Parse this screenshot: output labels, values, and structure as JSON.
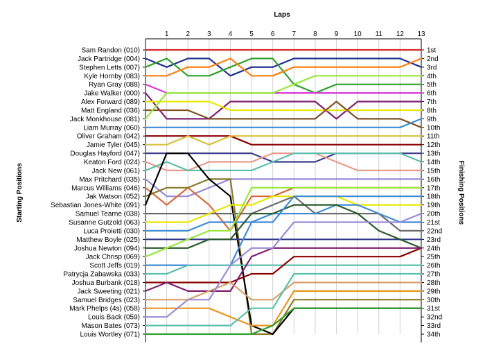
{
  "chart_data": {
    "type": "line",
    "title": "",
    "xlabel": "Laps",
    "ylabel_left": "Starting Positions",
    "ylabel_right": "Finishing Positions",
    "x": [
      0,
      1,
      2,
      3,
      4,
      5,
      6,
      7,
      8,
      9,
      10,
      11,
      12,
      13
    ],
    "xticks": [
      "1",
      "2",
      "3",
      "4",
      "5",
      "6",
      "7",
      "8",
      "9",
      "10",
      "11",
      "12",
      "13"
    ],
    "finishing_positions": [
      "1st",
      "2nd",
      "3rd",
      "4th",
      "5th",
      "6th",
      "7th",
      "8th",
      "9th",
      "10th",
      "11th",
      "12th",
      "13th",
      "14th",
      "15th",
      "16th",
      "17th",
      "18th",
      "19th",
      "20th",
      "21st",
      "22nd",
      "23rd",
      "24th",
      "25th",
      "26th",
      "27th",
      "28th",
      "29th",
      "30th",
      "31st",
      "32nd",
      "33rd",
      "34th"
    ],
    "grid": false,
    "legend": "none",
    "series": [
      {
        "name": "Sam Randon (010)",
        "color": "#d62728",
        "values": [
          1,
          1,
          1,
          1,
          1,
          1,
          1,
          1,
          1,
          1,
          1,
          1,
          1,
          1
        ]
      },
      {
        "name": "Jack Partridge (004)",
        "color": "#1f2f8f",
        "values": [
          2,
          3,
          2,
          2,
          4,
          3,
          3,
          2,
          2,
          2,
          2,
          2,
          2,
          3
        ]
      },
      {
        "name": "Stephen Letts (007)",
        "color": "#2ca02c",
        "values": [
          3,
          2,
          4,
          4,
          3,
          2,
          2,
          5,
          6,
          5,
          5,
          5,
          5,
          5
        ]
      },
      {
        "name": "Kyle Hornby (083)",
        "color": "#ff7f0e",
        "values": [
          4,
          4,
          3,
          3,
          2,
          4,
          4,
          3,
          3,
          3,
          3,
          3,
          3,
          2
        ]
      },
      {
        "name": "Ryan Gray (088)",
        "color": "#d63cd6",
        "values": [
          5,
          6,
          6,
          6,
          6,
          6,
          6,
          6,
          6,
          6,
          6,
          6,
          6,
          6
        ]
      },
      {
        "name": "Jake Walker (000)",
        "color": "#7f1f6f",
        "values": [
          6,
          9,
          9,
          9,
          7,
          7,
          7,
          7,
          7,
          9,
          7,
          7,
          7,
          7
        ]
      },
      {
        "name": "Alex Forward (089)",
        "color": "#e8e800",
        "values": [
          7,
          7,
          7,
          7,
          8,
          8,
          8,
          8,
          8,
          8,
          8,
          8,
          8,
          8
        ]
      },
      {
        "name": "Matt England (036)",
        "color": "#7f4f1f",
        "values": [
          8,
          8,
          8,
          9,
          9,
          9,
          9,
          9,
          9,
          7,
          9,
          9,
          9,
          10
        ]
      },
      {
        "name": "Jack Monkhouse (081)",
        "color": "#97e83c",
        "values": [
          9,
          6,
          6,
          6,
          6,
          6,
          6,
          5,
          4,
          4,
          4,
          4,
          4,
          4
        ]
      },
      {
        "name": "Liam Murray (060)",
        "color": "#3c8cd6",
        "values": [
          10,
          10,
          10,
          10,
          10,
          10,
          10,
          10,
          10,
          10,
          10,
          10,
          10,
          9
        ]
      },
      {
        "name": "Oliver Graham (042)",
        "color": "#8b0000",
        "values": [
          11,
          11,
          11,
          11,
          11,
          12,
          12,
          12,
          12,
          12,
          12,
          12,
          12,
          12
        ]
      },
      {
        "name": "Jamie Tyler (045)",
        "color": "#d6c23c",
        "values": [
          12,
          12,
          11,
          12,
          11,
          11,
          11,
          11,
          11,
          11,
          11,
          11,
          11,
          11
        ]
      },
      {
        "name": "Douglas Hayford (047)",
        "color": "#3c3c8c",
        "values": [
          13,
          13,
          13,
          13,
          13,
          13,
          14,
          14,
          14,
          13,
          13,
          13,
          13,
          13
        ]
      },
      {
        "name": "Keaton Ford (024)",
        "color": "#e89a8a",
        "values": [
          14,
          15,
          15,
          14,
          14,
          14,
          13,
          13,
          13,
          14,
          15,
          15,
          15,
          15
        ]
      },
      {
        "name": "Jack New (061)",
        "color": "#5abfae",
        "values": [
          15,
          14,
          15,
          15,
          15,
          15,
          14,
          13,
          13,
          13,
          13,
          13,
          13,
          14
        ]
      },
      {
        "name": "Max Pritchard (035)",
        "color": "#9a8ad6",
        "values": [
          16,
          18,
          18,
          17,
          16,
          16,
          16,
          16,
          16,
          16,
          16,
          16,
          16,
          16
        ]
      },
      {
        "name": "Marcus Williams (046)",
        "color": "#d6693c",
        "values": [
          17,
          19,
          17,
          19,
          22,
          18,
          18,
          17,
          17,
          17,
          17,
          17,
          17,
          17
        ]
      },
      {
        "name": "Jak Watson (052)",
        "color": "#8a7a2a",
        "values": [
          18,
          17,
          17,
          16,
          16,
          34,
          34,
          30,
          30,
          30,
          30,
          30,
          30,
          30
        ]
      },
      {
        "name": "Sebastian Jones-White (091)",
        "color": "#000000",
        "values": [
          19,
          13,
          13,
          16,
          18,
          33,
          34,
          31,
          31,
          31,
          31,
          31,
          31,
          31
        ]
      },
      {
        "name": "Samuel Tearne (038)",
        "color": "#6a6a6a",
        "values": [
          20,
          20,
          20,
          20,
          20,
          20,
          19,
          18,
          20,
          20,
          20,
          20,
          22,
          22
        ]
      },
      {
        "name": "Susanne Gutzold (063)",
        "color": "#e8e800",
        "values": [
          21,
          21,
          21,
          20,
          19,
          19,
          18,
          18,
          18,
          18,
          19,
          19,
          19,
          19
        ]
      },
      {
        "name": "Luca Proietti (030)",
        "color": "#3c8cd6",
        "values": [
          22,
          22,
          22,
          21,
          21,
          21,
          20,
          20,
          20,
          19,
          19,
          20,
          21,
          21
        ]
      },
      {
        "name": "Matthew Boyle (025)",
        "color": "#333a8c",
        "values": [
          23,
          23,
          23,
          23,
          23,
          23,
          23,
          23,
          23,
          23,
          23,
          23,
          23,
          23
        ]
      },
      {
        "name": "Joshua Newton (094)",
        "color": "#2a5a2a",
        "values": [
          24,
          24,
          24,
          23,
          23,
          20,
          20,
          19,
          19,
          19,
          20,
          22,
          23,
          24
        ]
      },
      {
        "name": "Jack Chrisp (069)",
        "color": "#97e83c",
        "values": [
          25,
          24,
          23,
          22,
          22,
          17,
          17,
          17,
          17,
          17,
          17,
          17,
          17,
          17
        ]
      },
      {
        "name": "Scott Jeffs (019)",
        "color": "#3c8cd6",
        "values": [
          26,
          26,
          26,
          26,
          26,
          21,
          21,
          18,
          18,
          18,
          18,
          18,
          18,
          18
        ]
      },
      {
        "name": "Patrycja Zabawska (033)",
        "color": "#5abfae",
        "values": [
          27,
          27,
          26,
          26,
          26,
          26,
          26,
          26,
          26,
          26,
          26,
          26,
          26,
          26
        ]
      },
      {
        "name": "Joshua Burbank (018)",
        "color": "#8b0000",
        "values": [
          28,
          28,
          28,
          28,
          28,
          27,
          27,
          25,
          25,
          25,
          25,
          25,
          25,
          24
        ]
      },
      {
        "name": "Jack Sweeting (021)",
        "color": "#7f1f6f",
        "values": [
          29,
          28,
          29,
          29,
          29,
          25,
          24,
          24,
          24,
          24,
          24,
          24,
          24,
          24
        ]
      },
      {
        "name": "Samuel Bridges (023)",
        "color": "#d6a06a",
        "values": [
          30,
          30,
          30,
          29,
          28,
          30,
          30,
          28,
          28,
          28,
          28,
          28,
          28,
          28
        ]
      },
      {
        "name": "Mark Phelps (4s) (058)",
        "color": "#e8961e",
        "values": [
          31,
          31,
          31,
          31,
          32,
          33,
          33,
          29,
          29,
          29,
          29,
          29,
          29,
          29
        ]
      },
      {
        "name": "Louis Back (059)",
        "color": "#9a8ad6",
        "values": [
          32,
          32,
          30,
          30,
          26,
          24,
          24,
          21,
          21,
          21,
          21,
          21,
          21,
          20
        ]
      },
      {
        "name": "Mason Bates (073)",
        "color": "#5abfae",
        "values": [
          33,
          33,
          33,
          33,
          33,
          31,
          31,
          27,
          27,
          27,
          27,
          27,
          27,
          27
        ]
      },
      {
        "name": "Louis Wortley (071)",
        "color": "#2ca02c",
        "values": [
          34,
          34,
          34,
          34,
          34,
          34,
          33,
          31,
          31,
          31,
          31,
          31,
          31,
          31
        ]
      }
    ]
  }
}
